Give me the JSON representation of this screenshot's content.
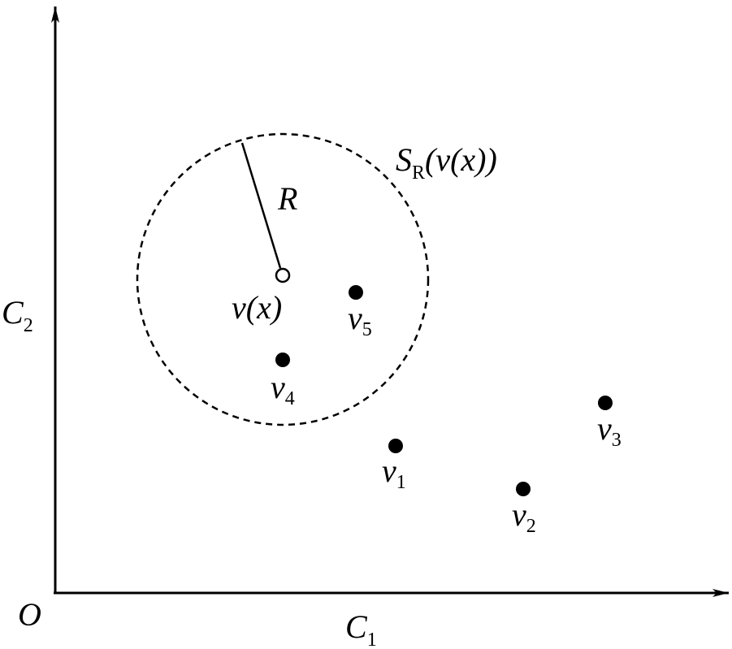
{
  "axes": {
    "origin": "O",
    "x_label": {
      "base": "C",
      "sub": "1"
    },
    "y_label": {
      "base": "C",
      "sub": "2"
    }
  },
  "neighborhood": {
    "label": {
      "base": "S",
      "sub": "R",
      "tail": "(v(x))"
    },
    "radius_label": "R",
    "center_label": "v(x)"
  },
  "points": [
    {
      "base": "v",
      "sub": "1"
    },
    {
      "base": "v",
      "sub": "2"
    },
    {
      "base": "v",
      "sub": "3"
    },
    {
      "base": "v",
      "sub": "4"
    },
    {
      "base": "v",
      "sub": "5"
    }
  ]
}
